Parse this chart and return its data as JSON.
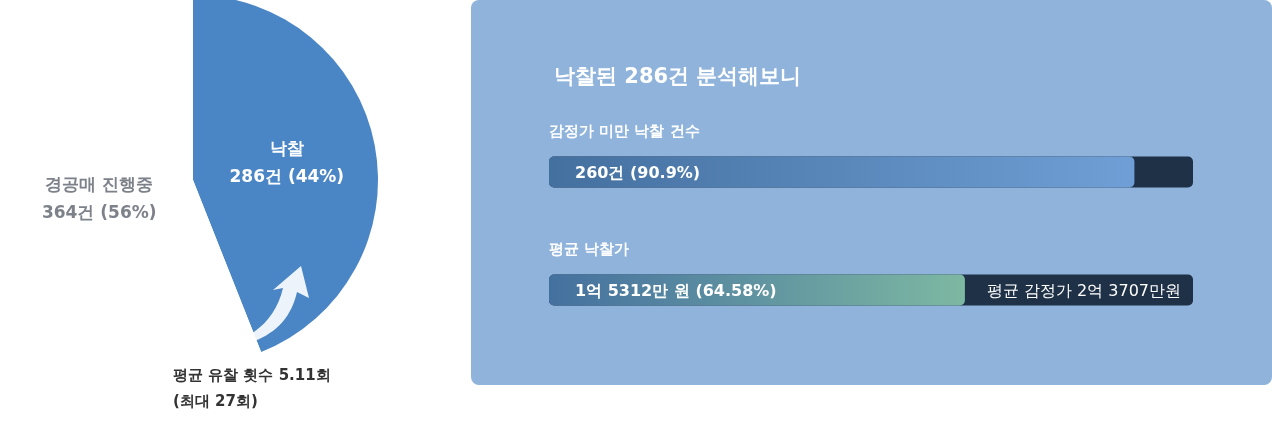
{
  "chart_data": [
    {
      "type": "pie",
      "categories": [
        "낙찰",
        "경공매 진행중"
      ],
      "values": [
        286,
        364
      ],
      "colors": [
        "#4a86c6",
        "#ffffff"
      ],
      "value_labels": [
        "286건 (44%)",
        "364건 (56%)"
      ],
      "legend": false,
      "annotations": [
        "평균 유찰 횟수 5.11회\n(최대 27회)"
      ]
    },
    {
      "type": "bar",
      "orientation": "horizontal",
      "title": "낙찰된 286건 분석해보니",
      "categories": [
        "감정가 미만 낙찰 건수",
        "평균 낙찰가"
      ],
      "values": [
        90.9,
        64.58
      ],
      "colors": [
        "#6f9fd6",
        "#7db8a2"
      ],
      "xlim": [
        0,
        100
      ],
      "tick_labels": "y",
      "value_labels": [
        "260건 (90.9%)",
        "1억 5312만 원 (64.58%)"
      ],
      "annotations": [
        "평균 감정가 2억 3707만원"
      ],
      "legend": false
    }
  ]
}
